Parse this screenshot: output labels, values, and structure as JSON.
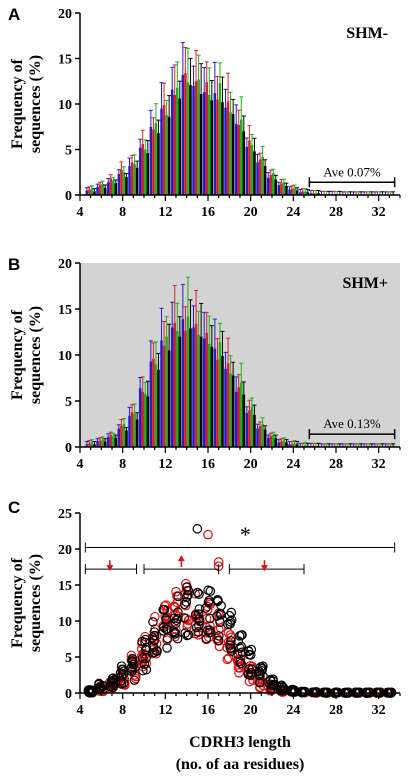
{
  "chart_data": [
    {
      "panel": "A",
      "type": "bar",
      "tag": "SHM-",
      "ylabel_line1": "Frequency of",
      "ylabel_line2": "sequences (%)",
      "xlim": [
        4,
        34
      ],
      "ylim": [
        0,
        20
      ],
      "xticks": [
        4,
        8,
        12,
        16,
        20,
        24,
        28,
        32
      ],
      "yticks": [
        0,
        5,
        10,
        15,
        20
      ],
      "background": "#ffffff",
      "annotation": {
        "text": "Ave 0.07%",
        "from": 25.5,
        "to": 33.5
      },
      "colors": [
        "#1f1fd6",
        "#e02020",
        "#1fae1f",
        "#000000"
      ],
      "categories": [
        5,
        6,
        7,
        8,
        9,
        10,
        11,
        12,
        13,
        14,
        15,
        16,
        17,
        18,
        19,
        20,
        21,
        22,
        23,
        24,
        25,
        26,
        27,
        28,
        29,
        30,
        31,
        32,
        33
      ],
      "series": [
        {
          "values": [
            0.5,
            0.9,
            1.4,
            2.3,
            3.2,
            5.2,
            7.5,
            9.5,
            11.6,
            13.2,
            12.0,
            11.3,
            11.2,
            9.6,
            7.8,
            5.3,
            3.6,
            1.9,
            1.1,
            0.6,
            0.3,
            0.2,
            0.1,
            0.1,
            0.05,
            0.05,
            0.05,
            0.05,
            0.05
          ]
        },
        {
          "values": [
            0.6,
            1.1,
            1.8,
            2.8,
            3.6,
            5.6,
            7.2,
            9.9,
            11.0,
            13.4,
            12.5,
            12.4,
            10.5,
            10.3,
            7.7,
            6.0,
            3.9,
            2.2,
            1.3,
            0.7,
            0.4,
            0.2,
            0.1,
            0.1,
            0.05,
            0.05,
            0.05,
            0.05,
            0.05
          ]
        },
        {
          "values": [
            0.7,
            1.2,
            1.6,
            2.5,
            3.4,
            5.0,
            7.9,
            8.8,
            11.8,
            12.4,
            12.7,
            11.0,
            12.3,
            9.1,
            8.3,
            5.5,
            4.2,
            2.4,
            1.4,
            0.8,
            0.4,
            0.2,
            0.1,
            0.1,
            0.05,
            0.05,
            0.05,
            0.05,
            0.05
          ]
        },
        {
          "values": [
            0.4,
            0.8,
            1.3,
            2.0,
            3.0,
            4.6,
            6.8,
            8.6,
            10.6,
            12.1,
            11.1,
            10.4,
            10.2,
            8.9,
            7.0,
            4.8,
            3.2,
            1.7,
            1.0,
            0.5,
            0.3,
            0.2,
            0.1,
            0.1,
            0.05,
            0.05,
            0.05,
            0.05,
            0.05
          ]
        }
      ]
    },
    {
      "panel": "B",
      "type": "bar",
      "tag": "SHM+",
      "ylabel_line1": "Frequency of",
      "ylabel_line2": "sequences (%)",
      "xlim": [
        4,
        34
      ],
      "ylim": [
        0,
        20
      ],
      "xticks": [
        4,
        8,
        12,
        16,
        20,
        24,
        28,
        32
      ],
      "yticks": [
        0,
        5,
        10,
        15,
        20
      ],
      "background": "#d3d3d3",
      "annotation": {
        "text": "Ave 0.13%",
        "from": 25.5,
        "to": 33.5
      },
      "colors": [
        "#1f1fd6",
        "#e02020",
        "#1fae1f",
        "#000000"
      ],
      "categories": [
        5,
        6,
        7,
        8,
        9,
        10,
        11,
        12,
        13,
        14,
        15,
        16,
        17,
        18,
        19,
        20,
        21,
        22,
        23,
        24,
        25,
        26,
        27,
        28,
        29,
        30,
        31,
        32,
        33
      ],
      "series": [
        {
          "values": [
            0.3,
            0.6,
            1.1,
            2.0,
            3.4,
            6.4,
            9.3,
            11.6,
            13.0,
            13.9,
            13.0,
            11.8,
            10.7,
            8.5,
            6.0,
            3.7,
            2.0,
            1.0,
            0.5,
            0.3,
            0.1,
            0.1,
            0.05,
            0.05,
            0.05,
            0.05,
            0.05,
            0.05,
            0.05
          ]
        },
        {
          "values": [
            0.4,
            0.7,
            1.3,
            2.3,
            3.8,
            6.0,
            9.6,
            11.0,
            13.5,
            12.6,
            13.4,
            12.4,
            9.5,
            9.1,
            6.5,
            4.0,
            2.3,
            1.2,
            0.6,
            0.3,
            0.1,
            0.1,
            0.05,
            0.05,
            0.05,
            0.05,
            0.05,
            0.05,
            0.05
          ]
        },
        {
          "values": [
            0.5,
            0.8,
            1.2,
            2.5,
            3.6,
            5.8,
            9.0,
            12.0,
            12.6,
            14.2,
            12.2,
            11.2,
            11.4,
            8.0,
            7.0,
            4.4,
            2.5,
            1.3,
            0.7,
            0.4,
            0.2,
            0.1,
            0.05,
            0.05,
            0.05,
            0.05,
            0.05,
            0.05,
            0.05
          ]
        },
        {
          "values": [
            0.3,
            0.6,
            1.0,
            1.8,
            3.0,
            5.5,
            8.4,
            10.5,
            12.0,
            12.9,
            12.0,
            10.9,
            9.9,
            7.8,
            5.7,
            3.5,
            1.9,
            1.0,
            0.5,
            0.3,
            0.1,
            0.1,
            0.05,
            0.05,
            0.05,
            0.05,
            0.05,
            0.05,
            0.05
          ]
        }
      ]
    },
    {
      "panel": "C",
      "type": "scatter",
      "tag": "",
      "ylabel_line1": "Frequency of",
      "ylabel_line2": "sequences (%)",
      "xlabel_line1": "CDRH3 length",
      "xlabel_line2": "(no. of aa residues)",
      "xlim": [
        4,
        34
      ],
      "ylim": [
        0,
        25
      ],
      "xticks": [
        4,
        8,
        12,
        16,
        20,
        24,
        28,
        32
      ],
      "yticks": [
        0,
        5,
        10,
        15,
        20,
        25
      ],
      "background": "#ffffff",
      "significance_mark": "*",
      "colors": [
        "#000000",
        "#e01010"
      ],
      "brackets": [
        {
          "from": 4.5,
          "to": 33.5,
          "y": 20.2
        },
        {
          "from": 4.5,
          "to": 9.3,
          "y": 17.2
        },
        {
          "from": 10.0,
          "to": 17.0,
          "y": 17.2
        },
        {
          "from": 18.0,
          "to": 25.0,
          "y": 17.2
        }
      ],
      "arrows": [
        {
          "x": 6.8,
          "direction": "down"
        },
        {
          "x": 13.5,
          "direction": "up"
        },
        {
          "x": 21.3,
          "direction": "down"
        }
      ],
      "series": [
        {
          "color": "#000000",
          "center": [
            0.3,
            0.9,
            1.6,
            2.4,
            3.4,
            5.2,
            7.3,
            9.3,
            10.6,
            11.3,
            11.5,
            11.0,
            9.9,
            8.4,
            6.3,
            4.3,
            2.5,
            1.3,
            0.7,
            0.3,
            0.15,
            0.1,
            0.05,
            0.05,
            0.05,
            0.05,
            0.05,
            0.05,
            0.05
          ],
          "spread": [
            0.3,
            0.5,
            0.9,
            1.4,
            1.8,
            2.3,
            2.7,
            3.1,
            3.4,
            3.6,
            3.7,
            3.6,
            3.3,
            2.9,
            2.4,
            1.9,
            1.3,
            0.8,
            0.4,
            0.2,
            0.1,
            0.05,
            0.05,
            0.05,
            0.05,
            0.05,
            0.05,
            0.05,
            0.05
          ]
        },
        {
          "color": "#e01010",
          "center": [
            0.2,
            0.6,
            1.2,
            2.2,
            3.6,
            5.8,
            8.0,
            10.0,
            11.2,
            11.8,
            11.4,
            10.4,
            8.8,
            6.8,
            4.6,
            2.7,
            1.4,
            0.7,
            0.3,
            0.15,
            0.1,
            0.05,
            0.05,
            0.05,
            0.05,
            0.05,
            0.05,
            0.05,
            0.05
          ],
          "spread": [
            0.2,
            0.4,
            0.8,
            1.2,
            1.7,
            2.2,
            2.7,
            3.1,
            3.4,
            3.5,
            3.4,
            3.2,
            2.8,
            2.3,
            1.8,
            1.2,
            0.7,
            0.4,
            0.2,
            0.1,
            0.05,
            0.05,
            0.05,
            0.05,
            0.05,
            0.05,
            0.05,
            0.05,
            0.05
          ]
        }
      ],
      "outliers": [
        {
          "x": 15.0,
          "y": 22.8,
          "color": "#000000"
        },
        {
          "x": 16.0,
          "y": 22.0,
          "color": "#e01010"
        },
        {
          "x": 17.0,
          "y": 18.2,
          "color": "#e01010"
        },
        {
          "x": 17.0,
          "y": 17.6,
          "color": "#e01010"
        }
      ]
    }
  ]
}
